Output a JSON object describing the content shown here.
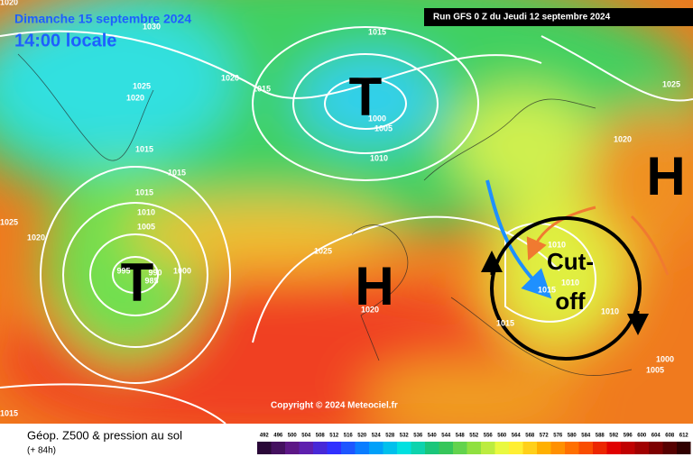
{
  "header": {
    "date": "Dimanche 15 septembre 2024",
    "time": "14:00 locale",
    "run": "Run GFS 0 Z du Jeudi 12 septembre 2024"
  },
  "copyright": "Copyright © 2024 Meteociel.fr",
  "footer": {
    "title": "Géop. Z500 & pression au sol",
    "lead": "(+ 84h)"
  },
  "centers": [
    "T",
    "T",
    "H",
    "H"
  ],
  "annotation": [
    "Cut-",
    "off"
  ],
  "isobar_labels": [
    "1020",
    "1030",
    "1015",
    "1025",
    "1020",
    "1020",
    "1015",
    "1015",
    "1015",
    "1015",
    "1010",
    "1005",
    "1025",
    "1020",
    "995",
    "990",
    "985",
    "1000",
    "1025",
    "1020",
    "1000",
    "1005",
    "1010",
    "1025",
    "1020",
    "1010",
    "1010",
    "1015",
    "1010",
    "1015",
    "1000",
    "1005",
    "1015"
  ],
  "color_scale": [
    "492",
    "496",
    "500",
    "504",
    "508",
    "512",
    "516",
    "520",
    "524",
    "528",
    "532",
    "536",
    "540",
    "544",
    "548",
    "552",
    "556",
    "560",
    "564",
    "568",
    "572",
    "576",
    "580",
    "584",
    "588",
    "592",
    "596",
    "600",
    "604",
    "608",
    "612"
  ]
}
